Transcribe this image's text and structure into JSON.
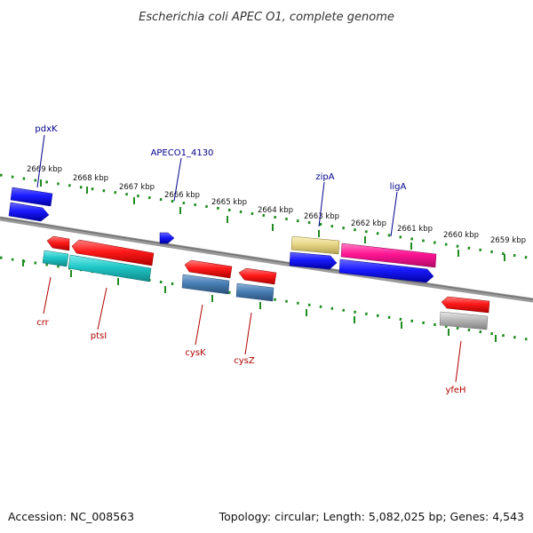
{
  "title": "Escherichia coli APEC O1, complete genome",
  "footer": {
    "accession": "Accession: NC_008563",
    "summary": "Topology: circular; Length: 5,082,025 bp; Genes: 4,543"
  },
  "ruler_labels": [
    "2669 kbp",
    "2668 kbp",
    "2667 kbp",
    "2666 kbp",
    "2665 kbp",
    "2664 kbp",
    "2663 kbp",
    "2662 kbp",
    "2661 kbp",
    "2660 kbp",
    "2659 kbp"
  ],
  "genes": [
    {
      "name": "pdxK",
      "strand": "forward",
      "color": "#1a1aff"
    },
    {
      "name": "APECO1_4130",
      "strand": "forward",
      "color": "#1a1aff"
    },
    {
      "name": "zipA",
      "strand": "forward",
      "color": "#1a1aff"
    },
    {
      "name": "ligA",
      "strand": "forward",
      "color": "#1a1aff"
    },
    {
      "name": "crr",
      "strand": "reverse",
      "color": "#ff1a1a"
    },
    {
      "name": "ptsI",
      "strand": "reverse",
      "color": "#ff1a1a"
    },
    {
      "name": "cysK",
      "strand": "reverse",
      "color": "#ff1a1a"
    },
    {
      "name": "cysZ",
      "strand": "reverse",
      "color": "#ff1a1a"
    },
    {
      "name": "yfeH",
      "strand": "reverse",
      "color": "#ff1a1a"
    }
  ],
  "colors": {
    "backbone": "#808080",
    "ruler_ticks": "#1e8c1e",
    "forward_cds": "#1a1aff",
    "reverse_cds": "#ff1a1a",
    "cyan_feature": "#20c8c8",
    "steelblue_feature": "#4a7fb5",
    "pink_feature": "#ff1493",
    "khaki_feature": "#e8d888",
    "grey_feature": "#b8b8b8"
  }
}
